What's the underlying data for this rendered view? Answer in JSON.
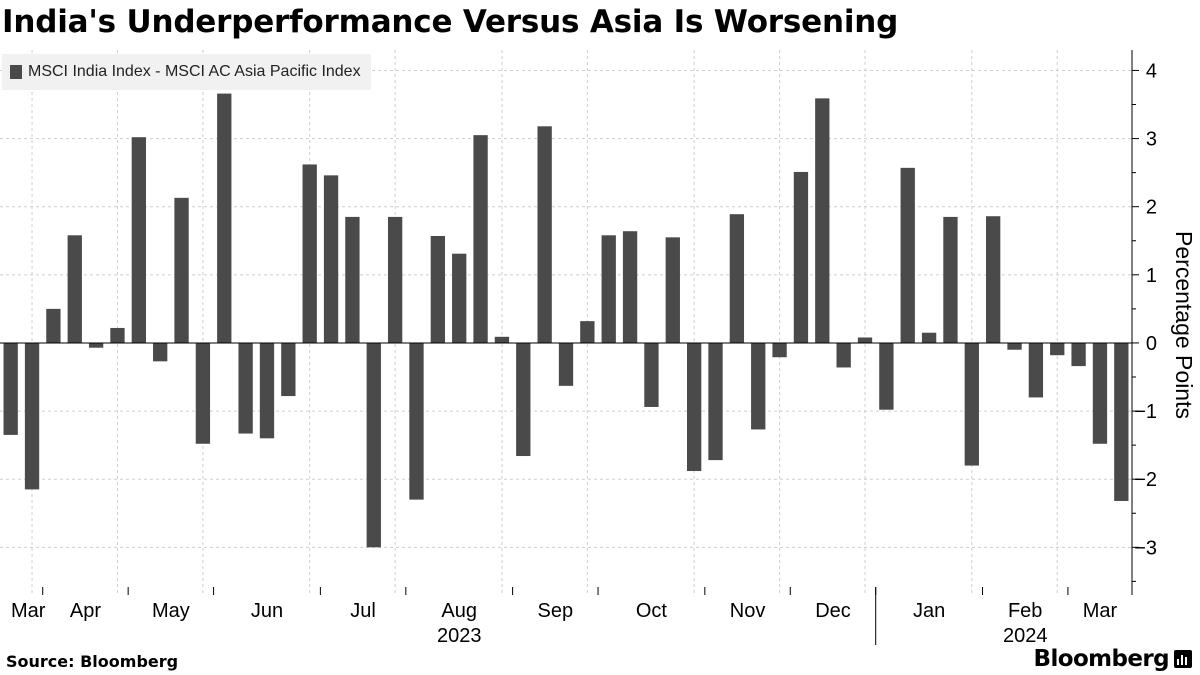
{
  "title": "India's Underperformance Versus Asia Is Worsening",
  "legend": {
    "label": "MSCI India Index - MSCI AC Asia Pacific Index",
    "color": "#4a4a4a"
  },
  "footer": {
    "source": "Source: Bloomberg",
    "brand": "Bloomberg",
    "brand_icon": "bar-chart-icon"
  },
  "colors": {
    "bar": "#4a4a4a",
    "grid": "#cfcfcf",
    "axis": "#000000",
    "background": "#ffffff"
  },
  "chart_data": {
    "type": "bar",
    "title": "India's Underperformance Versus Asia Is Worsening",
    "ylabel": "Percentage Points",
    "xlabel": "",
    "ylim": [
      -3.7,
      4.3
    ],
    "yticks": [
      -3,
      -2,
      -1,
      0,
      1,
      2,
      3,
      4
    ],
    "grid": true,
    "y_axis_position": "right",
    "legend_position": "top-left",
    "series": [
      {
        "name": "MSCI India Index - MSCI AC Asia Pacific Index",
        "values": [
          -1.35,
          -2.15,
          0.5,
          1.58,
          -0.07,
          0.22,
          3.02,
          -0.27,
          2.13,
          -1.48,
          3.66,
          -1.33,
          -1.4,
          -0.78,
          2.62,
          2.46,
          1.85,
          -3.0,
          1.85,
          -2.3,
          1.57,
          1.31,
          3.05,
          0.09,
          -1.66,
          3.18,
          -0.63,
          0.32,
          1.58,
          1.64,
          -0.94,
          1.55,
          -1.88,
          -1.72,
          1.89,
          -1.27,
          -0.21,
          2.51,
          3.59,
          -0.36,
          0.08,
          -0.98,
          2.57,
          0.15,
          1.85,
          -1.8,
          1.86,
          -0.1,
          -0.8,
          -0.18,
          -0.34,
          -1.48,
          -2.32
        ]
      }
    ],
    "x_month_labels": [
      "Mar",
      "Apr",
      "May",
      "Jun",
      "Jul",
      "Aug",
      "Sep",
      "Oct",
      "Nov",
      "Dec",
      "Jan",
      "Feb",
      "Mar"
    ],
    "month_start_index": [
      0,
      2,
      6,
      10,
      15,
      19,
      24,
      28,
      33,
      37,
      41,
      46,
      50
    ],
    "year_labels": [
      {
        "text": "2023",
        "month_index": 5
      },
      {
        "text": "2024",
        "month_index": 11
      }
    ]
  }
}
